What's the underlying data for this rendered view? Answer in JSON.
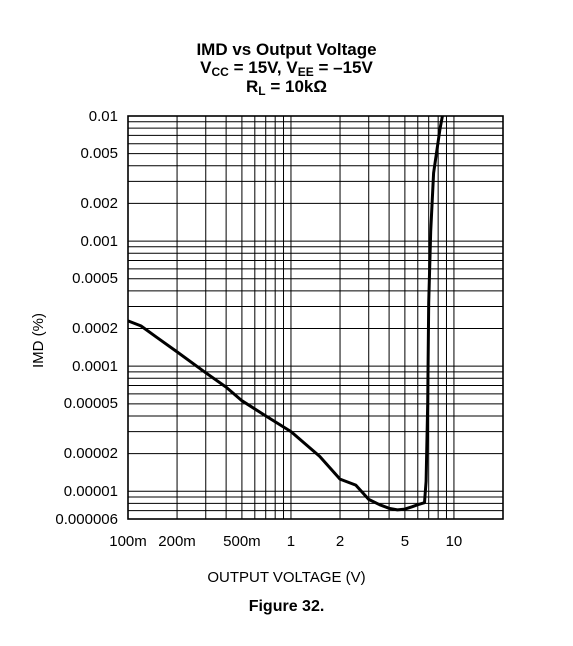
{
  "figure_caption": "Figure 32.",
  "chart_data": {
    "type": "line",
    "title_line1": "IMD vs Output Voltage",
    "title_line2": {
      "v": "V",
      "cc": "CC",
      "mid": " = 15V, V",
      "ee": "EE",
      "end": " = –15V"
    },
    "title_line3": {
      "r": "R",
      "l": "L",
      "end": " = 10kΩ"
    },
    "xlabel": "OUTPUT VOLTAGE (V)",
    "ylabel": "IMD (%)",
    "xscale": "log",
    "yscale": "log",
    "xlim": [
      0.1,
      20
    ],
    "ylim": [
      6e-06,
      0.01
    ],
    "grid": true,
    "x_tick_labels": [
      {
        "value": 0.1,
        "label": "100m"
      },
      {
        "value": 0.2,
        "label": "200m"
      },
      {
        "value": 0.5,
        "label": "500m"
      },
      {
        "value": 1,
        "label": "1"
      },
      {
        "value": 2,
        "label": "2"
      },
      {
        "value": 5,
        "label": "5"
      },
      {
        "value": 10,
        "label": "10"
      }
    ],
    "y_tick_labels": [
      {
        "value": 0.01,
        "label": "0.01"
      },
      {
        "value": 0.005,
        "label": "0.005"
      },
      {
        "value": 0.002,
        "label": "0.002"
      },
      {
        "value": 0.001,
        "label": "0.001"
      },
      {
        "value": 0.0005,
        "label": "0.0005"
      },
      {
        "value": 0.0002,
        "label": "0.0002"
      },
      {
        "value": 0.0001,
        "label": "0.0001"
      },
      {
        "value": 5e-05,
        "label": "0.00005"
      },
      {
        "value": 2e-05,
        "label": "0.00002"
      },
      {
        "value": 1e-05,
        "label": "0.00001"
      },
      {
        "value": 6e-06,
        "label": "0.000006"
      }
    ],
    "series": [
      {
        "color": "#000000",
        "points": [
          [
            0.1,
            0.00023
          ],
          [
            0.12,
            0.00021
          ],
          [
            0.15,
            0.00017
          ],
          [
            0.2,
            0.00013
          ],
          [
            0.3,
            8.85e-05
          ],
          [
            0.4,
            6.8e-05
          ],
          [
            0.5,
            5.3e-05
          ],
          [
            0.7,
            4e-05
          ],
          [
            1.0,
            3e-05
          ],
          [
            1.5,
            1.9e-05
          ],
          [
            2.0,
            1.25e-05
          ],
          [
            2.5,
            1.12e-05
          ],
          [
            3.0,
            8.6e-06
          ],
          [
            3.5,
            7.8e-06
          ],
          [
            4.0,
            7.3e-06
          ],
          [
            4.5,
            7.1e-06
          ],
          [
            5.0,
            7.2e-06
          ],
          [
            5.5,
            7.5e-06
          ],
          [
            6.0,
            7.8e-06
          ],
          [
            6.6,
            8.1e-06
          ],
          [
            6.75,
            1.2e-05
          ],
          [
            6.9,
            5e-05
          ],
          [
            7.0,
            0.00032
          ],
          [
            7.2,
            0.0012
          ],
          [
            7.5,
            0.0035
          ],
          [
            7.8,
            0.005
          ],
          [
            8.2,
            0.0078
          ],
          [
            8.5,
            0.01
          ]
        ]
      }
    ]
  }
}
